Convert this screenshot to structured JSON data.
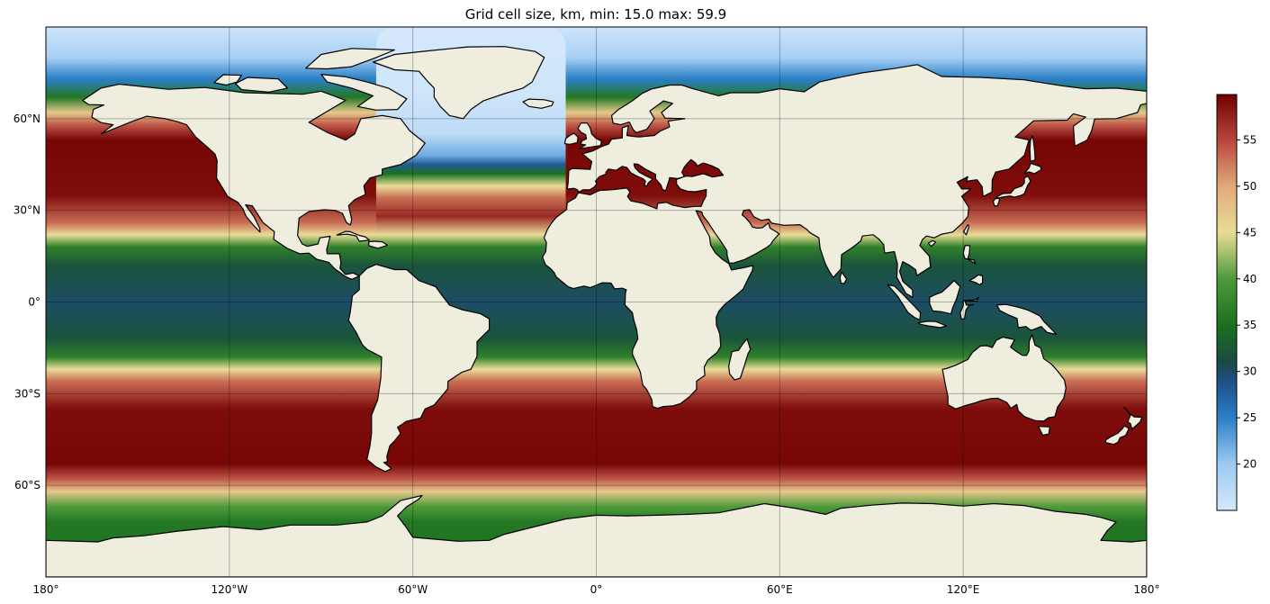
{
  "title": "Grid cell size, km, min: 15.0 max: 59.9",
  "map": {
    "projection": "PlateCarree",
    "lon_range": [
      -180,
      180
    ],
    "lat_range": [
      -90,
      90
    ],
    "gridlines": true,
    "land_color": "#efedde",
    "coastline_color": "#000000"
  },
  "x_ticks": [
    {
      "lon": -180,
      "label": "180°"
    },
    {
      "lon": -120,
      "label": "120°W"
    },
    {
      "lon": -60,
      "label": "60°W"
    },
    {
      "lon": 0,
      "label": "0°"
    },
    {
      "lon": 60,
      "label": "60°E"
    },
    {
      "lon": 120,
      "label": "120°E"
    },
    {
      "lon": 180,
      "label": "180°"
    }
  ],
  "y_ticks": [
    {
      "lat": 60,
      "label": "60°N"
    },
    {
      "lat": 30,
      "label": "30°N"
    },
    {
      "lat": 0,
      "label": "0°"
    },
    {
      "lat": -30,
      "label": "30°S"
    },
    {
      "lat": -60,
      "label": "60°S"
    }
  ],
  "colorbar": {
    "min": 15.0,
    "max": 59.9,
    "ticks": [
      20,
      25,
      30,
      35,
      40,
      45,
      50,
      55
    ],
    "tick_labels": [
      "20",
      "25",
      "30",
      "35",
      "40",
      "45",
      "50",
      "55"
    ],
    "colormap_stops": [
      {
        "v": 15,
        "c": "#d4e8fb"
      },
      {
        "v": 20,
        "c": "#9ccaf2"
      },
      {
        "v": 25,
        "c": "#2b7fc6"
      },
      {
        "v": 29,
        "c": "#1d4f86"
      },
      {
        "v": 31,
        "c": "#1b4a44"
      },
      {
        "v": 35,
        "c": "#1a701f"
      },
      {
        "v": 40,
        "c": "#4e9a3a"
      },
      {
        "v": 45,
        "c": "#e9dc97"
      },
      {
        "v": 50,
        "c": "#e2a97a"
      },
      {
        "v": 55,
        "c": "#b8453d"
      },
      {
        "v": 59.9,
        "c": "#710000"
      }
    ]
  },
  "field_profile": [
    {
      "lat": 90,
      "v": 15.5
    },
    {
      "lat": 80,
      "v": 19
    },
    {
      "lat": 73,
      "v": 25
    },
    {
      "lat": 67,
      "v": 36
    },
    {
      "lat": 62,
      "v": 47
    },
    {
      "lat": 58,
      "v": 54
    },
    {
      "lat": 53,
      "v": 59.5
    },
    {
      "lat": 35,
      "v": 59
    },
    {
      "lat": 26,
      "v": 53
    },
    {
      "lat": 22,
      "v": 45
    },
    {
      "lat": 18,
      "v": 37
    },
    {
      "lat": 12,
      "v": 32
    },
    {
      "lat": 0,
      "v": 30
    },
    {
      "lat": -12,
      "v": 32
    },
    {
      "lat": -18,
      "v": 37
    },
    {
      "lat": -22,
      "v": 45
    },
    {
      "lat": -26,
      "v": 53
    },
    {
      "lat": -35,
      "v": 59
    },
    {
      "lat": -53,
      "v": 59.5
    },
    {
      "lat": -58,
      "v": 54
    },
    {
      "lat": -62,
      "v": 47
    },
    {
      "lat": -67,
      "v": 40
    },
    {
      "lat": -72,
      "v": 36
    },
    {
      "lat": -90,
      "v": 35
    }
  ],
  "north_atlantic_profile": [
    {
      "lat": 90,
      "v": 15
    },
    {
      "lat": 68,
      "v": 15.5
    },
    {
      "lat": 55,
      "v": 17
    },
    {
      "lat": 48,
      "v": 22
    },
    {
      "lat": 45,
      "v": 28
    },
    {
      "lat": 42,
      "v": 35
    },
    {
      "lat": 38,
      "v": 45
    },
    {
      "lat": 34,
      "v": 53
    },
    {
      "lat": 28,
      "v": 57
    },
    {
      "lat": 22,
      "v": 45
    },
    {
      "lat": 18,
      "v": 37
    }
  ]
}
